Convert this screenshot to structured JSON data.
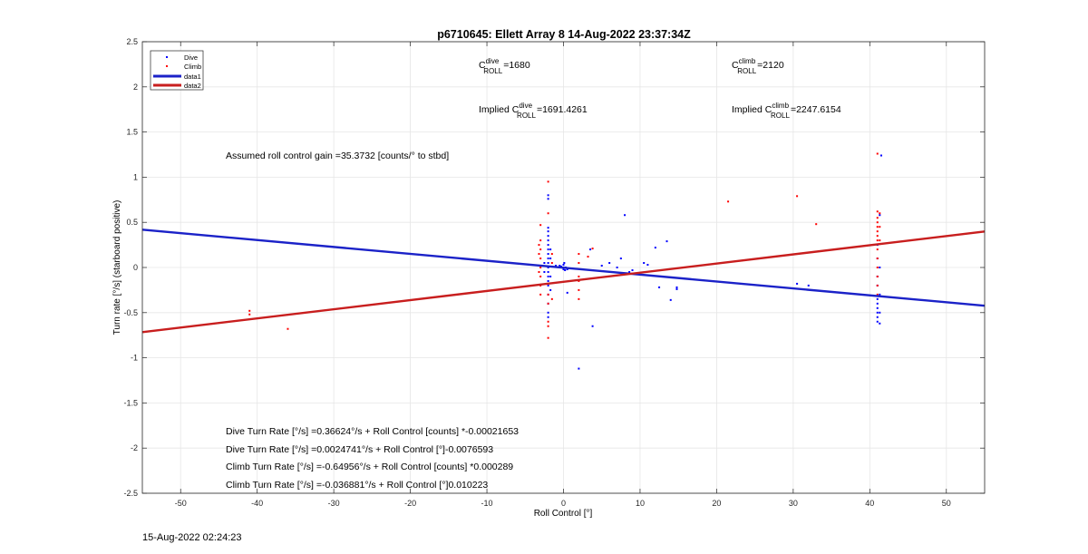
{
  "footer": {
    "timestamp": "15-Aug-2022 02:24:23"
  },
  "annotations": {
    "c_dive": {
      "main": "C",
      "sup": "dive",
      "sub": "ROLL",
      "value": "=1680"
    },
    "c_climb": {
      "main": "C",
      "sup": "climb",
      "sub": "ROLL",
      "value": "=2120"
    },
    "implied_dive": {
      "prefix": "Implied C",
      "sup": "dive",
      "sub": "ROLL",
      "value": "=1691.4261"
    },
    "implied_climb": {
      "prefix": "Implied C",
      "sup": "climb",
      "sub": "ROLL",
      "value": "=2247.6154"
    },
    "gain": "Assumed roll control gain =35.3732 [counts/° to stbd]",
    "equations": [
      "Dive Turn Rate [°/s] =0.36624°/s + Roll Control [counts] *-0.00021653",
      "Dive Turn Rate [°/s] =0.0024741°/s + Roll Control [°]-0.0076593",
      "Climb Turn Rate [°/s] =-0.64956°/s + Roll Control [counts] *0.000289",
      "Climb Turn Rate [°/s] =-0.036881°/s + Roll Control [°]0.010223"
    ]
  },
  "chart_data": {
    "type": "scatter",
    "title": "p6710645: Ellett Array 8 14-Aug-2022 23:37:34Z",
    "xlabel": "Roll Control [°]",
    "ylabel": "Turn rate [°/s] (starboard positive)",
    "xlim": [
      -55,
      55
    ],
    "ylim": [
      -2.5,
      2.5
    ],
    "xticks": [
      -50,
      -40,
      -30,
      -20,
      -10,
      0,
      10,
      20,
      30,
      40,
      50
    ],
    "yticks": [
      -2.5,
      -2,
      -1.5,
      -1,
      -0.5,
      0,
      0.5,
      1,
      1.5,
      2,
      2.5
    ],
    "grid": true,
    "legend_position": "top-left",
    "series": [
      {
        "name": "Dive",
        "kind": "points",
        "color": "#0000ff",
        "points": [
          [
            -2,
            0.8
          ],
          [
            -2,
            0.76
          ],
          [
            -2,
            0.44
          ],
          [
            -2,
            0.4
          ],
          [
            -2,
            0.35
          ],
          [
            -2,
            0.3
          ],
          [
            -2,
            0.25
          ],
          [
            -2,
            0.2
          ],
          [
            -2,
            0.15
          ],
          [
            -2,
            0.1
          ],
          [
            -2,
            0.05
          ],
          [
            -2,
            0.0
          ],
          [
            -2,
            -0.05
          ],
          [
            -2,
            -0.1
          ],
          [
            -2,
            -0.15
          ],
          [
            -2,
            -0.2
          ],
          [
            -2,
            -0.3
          ],
          [
            -2,
            -0.4
          ],
          [
            -2,
            -0.5
          ],
          [
            -2,
            -0.55
          ],
          [
            -1.7,
            0.2
          ],
          [
            -1.7,
            0.1
          ],
          [
            -1.7,
            -0.1
          ],
          [
            -1.7,
            -0.25
          ],
          [
            -2.5,
            0.05
          ],
          [
            -2.5,
            -0.05
          ],
          [
            -1,
            0.02
          ],
          [
            -0.5,
            0.02
          ],
          [
            -0.3,
            0.01
          ],
          [
            0,
            0.03
          ],
          [
            0,
            0.0
          ],
          [
            0,
            -0.01
          ],
          [
            0,
            -0.02
          ],
          [
            0.1,
            0.05
          ],
          [
            0.2,
            -0.03
          ],
          [
            0.3,
            0.0
          ],
          [
            0.5,
            -0.02
          ],
          [
            0.5,
            -0.28
          ],
          [
            2,
            -1.12
          ],
          [
            3.5,
            0.2
          ],
          [
            3.8,
            -0.65
          ],
          [
            5,
            0.02
          ],
          [
            6,
            0.05
          ],
          [
            7,
            0.0
          ],
          [
            7.5,
            0.1
          ],
          [
            8,
            0.58
          ],
          [
            8.6,
            -0.05
          ],
          [
            9,
            -0.03
          ],
          [
            10.5,
            0.05
          ],
          [
            11,
            0.03
          ],
          [
            12,
            0.22
          ],
          [
            12.5,
            -0.22
          ],
          [
            13.5,
            0.29
          ],
          [
            14,
            -0.36
          ],
          [
            14.8,
            -0.22
          ],
          [
            14.8,
            -0.24
          ],
          [
            30.5,
            -0.18
          ],
          [
            32,
            -0.2
          ],
          [
            41,
            0.25
          ],
          [
            41,
            0.1
          ],
          [
            41,
            -0.1
          ],
          [
            41,
            -0.2
          ],
          [
            41,
            -0.35
          ],
          [
            41,
            -0.4
          ],
          [
            41,
            -0.45
          ],
          [
            41,
            -0.5
          ],
          [
            41,
            -0.55
          ],
          [
            41,
            -0.6
          ],
          [
            41.3,
            0.58
          ],
          [
            41.3,
            0.0
          ],
          [
            41.3,
            -0.3
          ],
          [
            41.3,
            -0.5
          ],
          [
            41.3,
            -0.62
          ],
          [
            41.5,
            1.24
          ]
        ]
      },
      {
        "name": "Climb",
        "kind": "points",
        "color": "#ff0000",
        "points": [
          [
            -41,
            -0.48
          ],
          [
            -41,
            -0.52
          ],
          [
            -36,
            -0.68
          ],
          [
            -3,
            0.47
          ],
          [
            -3,
            0.3
          ],
          [
            -3,
            0.2
          ],
          [
            -3,
            0.1
          ],
          [
            -3,
            0.0
          ],
          [
            -3,
            -0.1
          ],
          [
            -3,
            -0.2
          ],
          [
            -3,
            -0.3
          ],
          [
            -3.2,
            0.25
          ],
          [
            -3.2,
            0.15
          ],
          [
            -3.2,
            -0.05
          ],
          [
            -2,
            0.95
          ],
          [
            -2,
            0.6
          ],
          [
            -2,
            -0.3
          ],
          [
            -2,
            -0.4
          ],
          [
            -2,
            -0.6
          ],
          [
            -2,
            -0.65
          ],
          [
            -2,
            -0.78
          ],
          [
            -1.5,
            0.15
          ],
          [
            -1.5,
            0.05
          ],
          [
            -1.5,
            -0.35
          ],
          [
            2,
            0.15
          ],
          [
            2,
            0.05
          ],
          [
            2,
            -0.1
          ],
          [
            2,
            -0.15
          ],
          [
            2,
            -0.25
          ],
          [
            2,
            -0.35
          ],
          [
            3.2,
            0.12
          ],
          [
            3.8,
            0.21
          ],
          [
            21.5,
            0.73
          ],
          [
            30.5,
            0.79
          ],
          [
            33,
            0.48
          ],
          [
            41,
            0.62
          ],
          [
            41,
            0.55
          ],
          [
            41,
            0.5
          ],
          [
            41,
            0.45
          ],
          [
            41,
            0.4
          ],
          [
            41,
            0.35
          ],
          [
            41,
            0.3
          ],
          [
            41,
            0.2
          ],
          [
            41,
            0.1
          ],
          [
            41,
            0.0
          ],
          [
            41,
            -0.1
          ],
          [
            41,
            -0.2
          ],
          [
            41,
            -0.3
          ],
          [
            41.3,
            0.6
          ],
          [
            41.3,
            0.45
          ],
          [
            41.3,
            0.3
          ],
          [
            41,
            1.26
          ]
        ]
      },
      {
        "name": "data1",
        "kind": "line",
        "color": "#1b22c8",
        "x": [
          -55,
          55
        ],
        "y": [
          0.4185,
          -0.4233
        ]
      },
      {
        "name": "data2",
        "kind": "line",
        "color": "#c81e1e",
        "x": [
          -55,
          55
        ],
        "y": [
          -0.7158,
          0.3981
        ]
      }
    ]
  }
}
